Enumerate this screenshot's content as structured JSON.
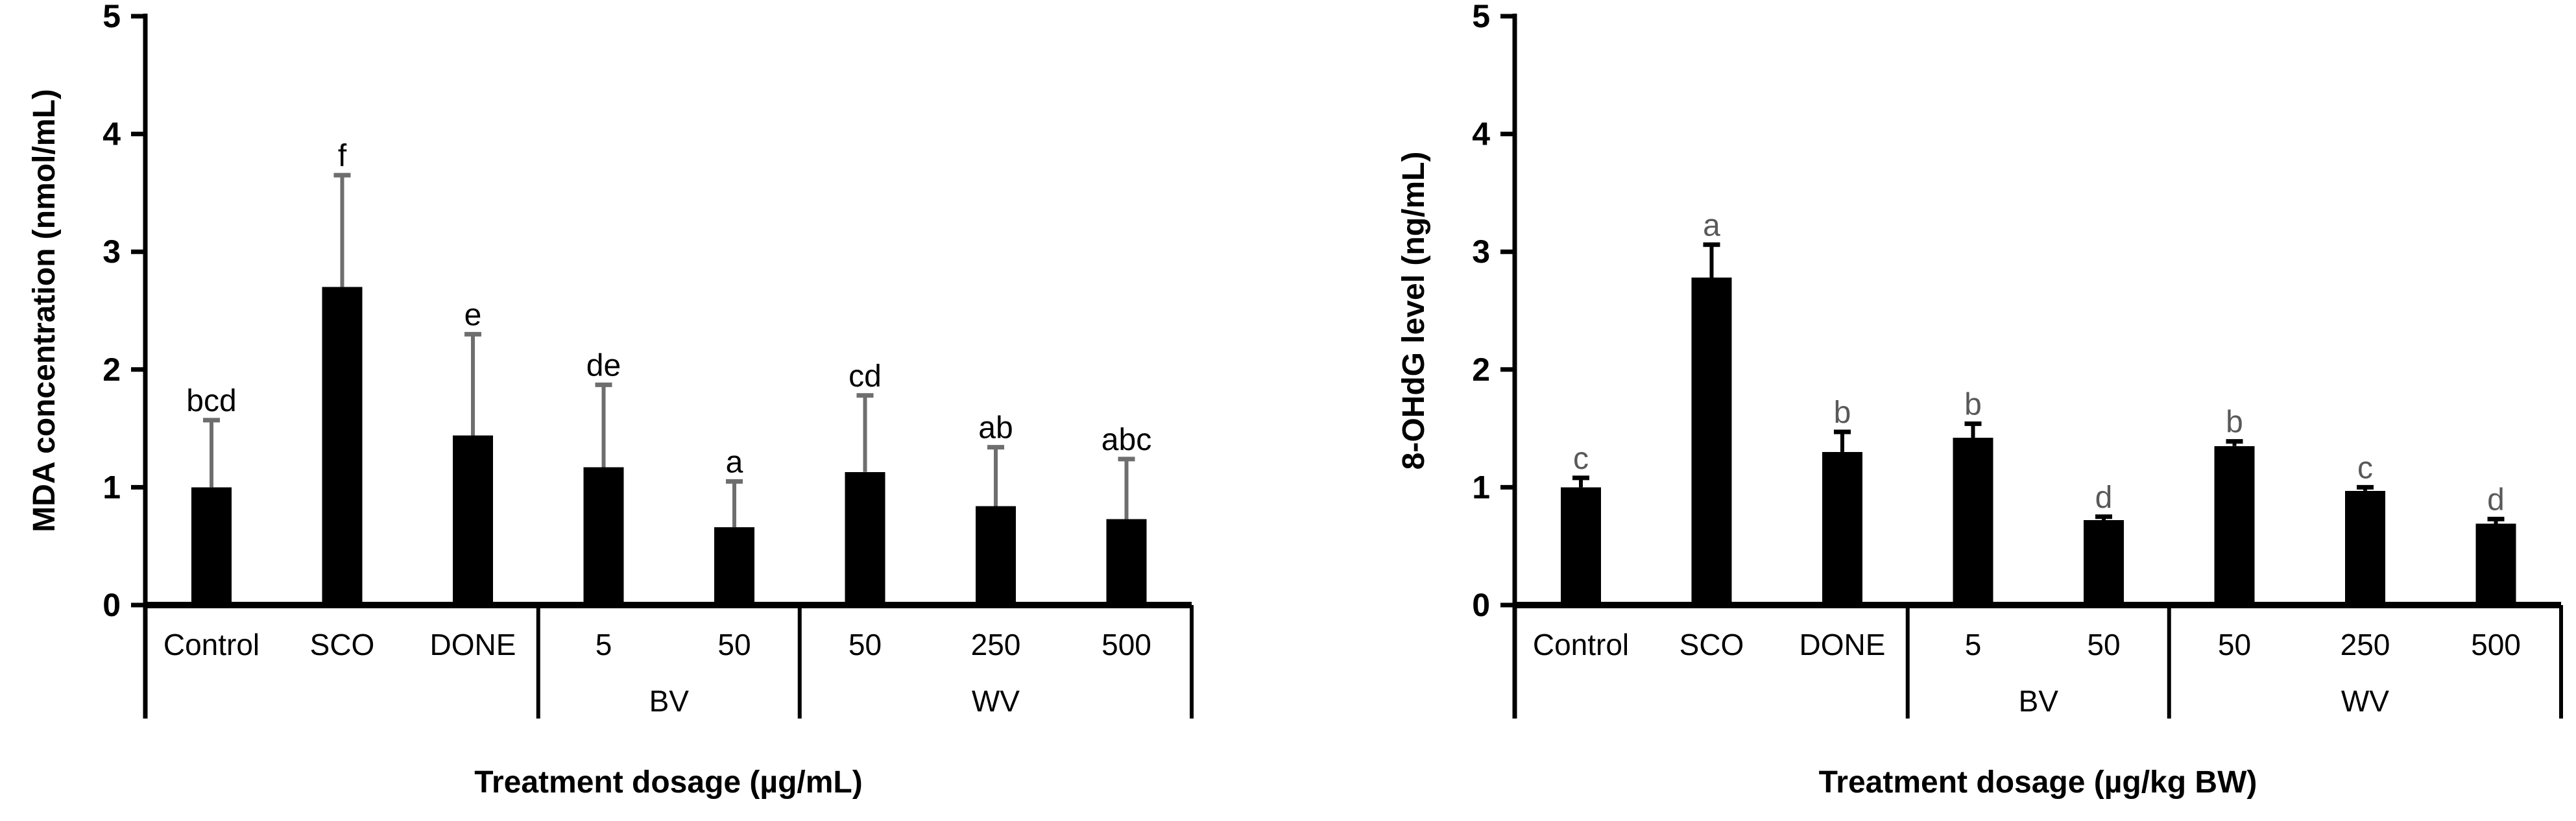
{
  "page": {
    "background_color": "#ffffff"
  },
  "chart_data": [
    {
      "type": "bar",
      "id": "mda",
      "title": "",
      "ylabel": "MDA concentration (nmol/mL)",
      "xlabel": "Treatment dosage (µg/mL)",
      "ylim": [
        0,
        5
      ],
      "yticks": [
        0,
        1,
        2,
        3,
        4,
        5
      ],
      "grid": false,
      "legend": "none",
      "bar_color": "#000000",
      "error_bar_color": "#6e6e6e",
      "sig_letter_color": "#000000",
      "groups": [
        {
          "label": "",
          "bars": [
            {
              "category": "Control",
              "value": 1.0,
              "error_up": 0.57,
              "sig": "bcd"
            },
            {
              "category": "SCO",
              "value": 2.7,
              "error_up": 0.95,
              "sig": "f"
            },
            {
              "category": "DONE",
              "value": 1.44,
              "error_up": 0.86,
              "sig": "e"
            }
          ]
        },
        {
          "label": "BV",
          "bars": [
            {
              "category": "5",
              "value": 1.17,
              "error_up": 0.7,
              "sig": "de"
            },
            {
              "category": "50",
              "value": 0.66,
              "error_up": 0.39,
              "sig": "a"
            }
          ]
        },
        {
          "label": "WV",
          "bars": [
            {
              "category": "50",
              "value": 1.13,
              "error_up": 0.65,
              "sig": "cd"
            },
            {
              "category": "250",
              "value": 0.84,
              "error_up": 0.5,
              "sig": "ab"
            },
            {
              "category": "500",
              "value": 0.73,
              "error_up": 0.51,
              "sig": "abc"
            }
          ]
        }
      ]
    },
    {
      "type": "bar",
      "id": "ohdg",
      "title": "",
      "ylabel": "8-OHdG level (ng/mL)",
      "xlabel": "Treatment dosage (µg/kg BW)",
      "ylim": [
        0,
        5
      ],
      "yticks": [
        0,
        1,
        2,
        3,
        4,
        5
      ],
      "grid": false,
      "legend": "none",
      "bar_color": "#000000",
      "error_bar_color": "#000000",
      "sig_letter_color": "#595959",
      "groups": [
        {
          "label": "",
          "bars": [
            {
              "category": "Control",
              "value": 1.0,
              "error_up": 0.08,
              "sig": "c"
            },
            {
              "category": "SCO",
              "value": 2.78,
              "error_up": 0.28,
              "sig": "a"
            },
            {
              "category": "DONE",
              "value": 1.3,
              "error_up": 0.17,
              "sig": "b"
            }
          ]
        },
        {
          "label": "BV",
          "bars": [
            {
              "category": "5",
              "value": 1.42,
              "error_up": 0.12,
              "sig": "b"
            },
            {
              "category": "50",
              "value": 0.72,
              "error_up": 0.03,
              "sig": "d"
            }
          ]
        },
        {
          "label": "WV",
          "bars": [
            {
              "category": "50",
              "value": 1.35,
              "error_up": 0.04,
              "sig": "b"
            },
            {
              "category": "250",
              "value": 0.97,
              "error_up": 0.03,
              "sig": "c"
            },
            {
              "category": "500",
              "value": 0.69,
              "error_up": 0.04,
              "sig": "d"
            }
          ]
        }
      ]
    }
  ]
}
